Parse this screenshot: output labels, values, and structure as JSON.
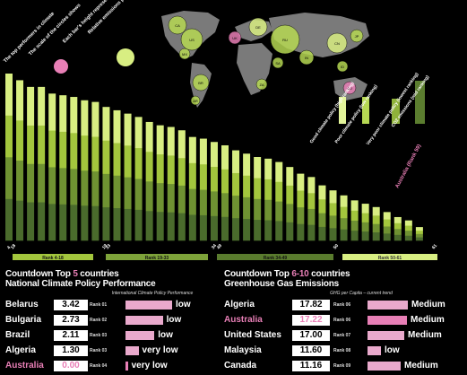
{
  "chart_data": {
    "type": "bar",
    "values": [
      100,
      96,
      92,
      92,
      88,
      87,
      86,
      84,
      83,
      80,
      78,
      76,
      74,
      71,
      69,
      68,
      66,
      62,
      61,
      59,
      57,
      54,
      52,
      50,
      49,
      47,
      44,
      40,
      38,
      33,
      30,
      27,
      24,
      22,
      20,
      17,
      14,
      12,
      8
    ],
    "series_tones": [
      "#4a6b2c",
      "#6f9232",
      "#a3c63d",
      "#d8ee82"
    ],
    "axis_labels": [
      "Rank 4-18",
      "Rank 19-33",
      "Rank 34-49",
      "Rank 50-61"
    ],
    "axis_numbers": [
      "4",
      "18",
      "19",
      "33",
      "34",
      "49",
      "50",
      "61"
    ],
    "legend_bars": [
      {
        "label": "Good climate policy (high ranking)",
        "color": "#e2f49a"
      },
      {
        "label": "Poor climate policy (low ranking)",
        "color": "#b6d853"
      },
      {
        "label": "Very poor climate policy (lowest ranking)",
        "color": "#8fb23a"
      },
      {
        "label": "CO2 emissions (mid ranking)",
        "color": "#5b7d2f"
      }
    ],
    "highlight_label": "Australia (Rank 59)",
    "top_notes": [
      "The top performers in climate",
      "The scale of the circles shows",
      "Each bar's height represents",
      "Relative emissions per capita"
    ]
  },
  "map_bubbles": [
    {
      "label": "CA",
      "r": 10,
      "c": "#b6d853"
    },
    {
      "label": "US",
      "r": 12,
      "c": "#b6d853"
    },
    {
      "label": "MX",
      "r": 6,
      "c": "#b6d853"
    },
    {
      "label": "BR",
      "r": 9,
      "c": "#b6d853"
    },
    {
      "label": "AR",
      "r": 5,
      "c": "#b6d853"
    },
    {
      "label": "UK",
      "r": 7,
      "c": "#e87fb6"
    },
    {
      "label": "DE",
      "r": 10,
      "c": "#d8ee82"
    },
    {
      "label": "RU",
      "r": 16,
      "c": "#b6d853"
    },
    {
      "label": "IN",
      "r": 8,
      "c": "#b6d853"
    },
    {
      "label": "CN",
      "r": 11,
      "c": "#d8ee82"
    },
    {
      "label": "JP",
      "r": 7,
      "c": "#b6d853"
    },
    {
      "label": "ZA",
      "r": 6,
      "c": "#b6d853"
    },
    {
      "label": "AU",
      "r": 7,
      "c": "#e87fb6"
    },
    {
      "label": "SA",
      "r": 6,
      "c": "#b6d853"
    },
    {
      "label": "ID",
      "r": 6,
      "c": "#b6d853"
    }
  ],
  "left_panel": {
    "title_prefix": "Countdown Top ",
    "title_num": "5",
    "title_suffix": " countries",
    "title_line2": "National Climate Policy Performance",
    "subtitle": "International Climate Policy Performance",
    "rows": [
      {
        "name": "Belarus",
        "value": "3.42",
        "rank": "Rank 01",
        "level": "low",
        "bar": 1.0
      },
      {
        "name": "Bulgaria",
        "value": "2.73",
        "rank": "Rank 02",
        "level": "low",
        "bar": 0.8
      },
      {
        "name": "Brazil",
        "value": "2.11",
        "rank": "Rank 03",
        "level": "low",
        "bar": 0.62
      },
      {
        "name": "Algeria",
        "value": "1.30",
        "rank": "Rank 03",
        "level": "very low",
        "bar": 0.28
      },
      {
        "name": "Australia",
        "value": "0.00",
        "rank": "Rank 04",
        "level": "very low",
        "bar": 0.05,
        "highlight": true
      }
    ]
  },
  "right_panel": {
    "title_prefix": "Countdown Top ",
    "title_num": "6-10",
    "title_suffix": " countries",
    "title_line2": "Greenhouse Gas Emissions",
    "subtitle": "GHG per Capita – current trend",
    "rows": [
      {
        "name": "Algeria",
        "value": "17.82",
        "rank": "Rank 06",
        "level": "Medium",
        "bar": 0.9
      },
      {
        "name": "Australia",
        "value": "17.22",
        "rank": "Rank 06",
        "level": "Medium",
        "bar": 0.88,
        "highlight": true
      },
      {
        "name": "United States",
        "value": "17.00",
        "rank": "Rank 07",
        "level": "Medium",
        "bar": 0.82
      },
      {
        "name": "Malaysia",
        "value": "11.60",
        "rank": "Rank 08",
        "level": "low",
        "bar": 0.3
      },
      {
        "name": "Canada",
        "value": "11.16",
        "rank": "Rank 09",
        "level": "Medium",
        "bar": 0.74
      }
    ]
  }
}
